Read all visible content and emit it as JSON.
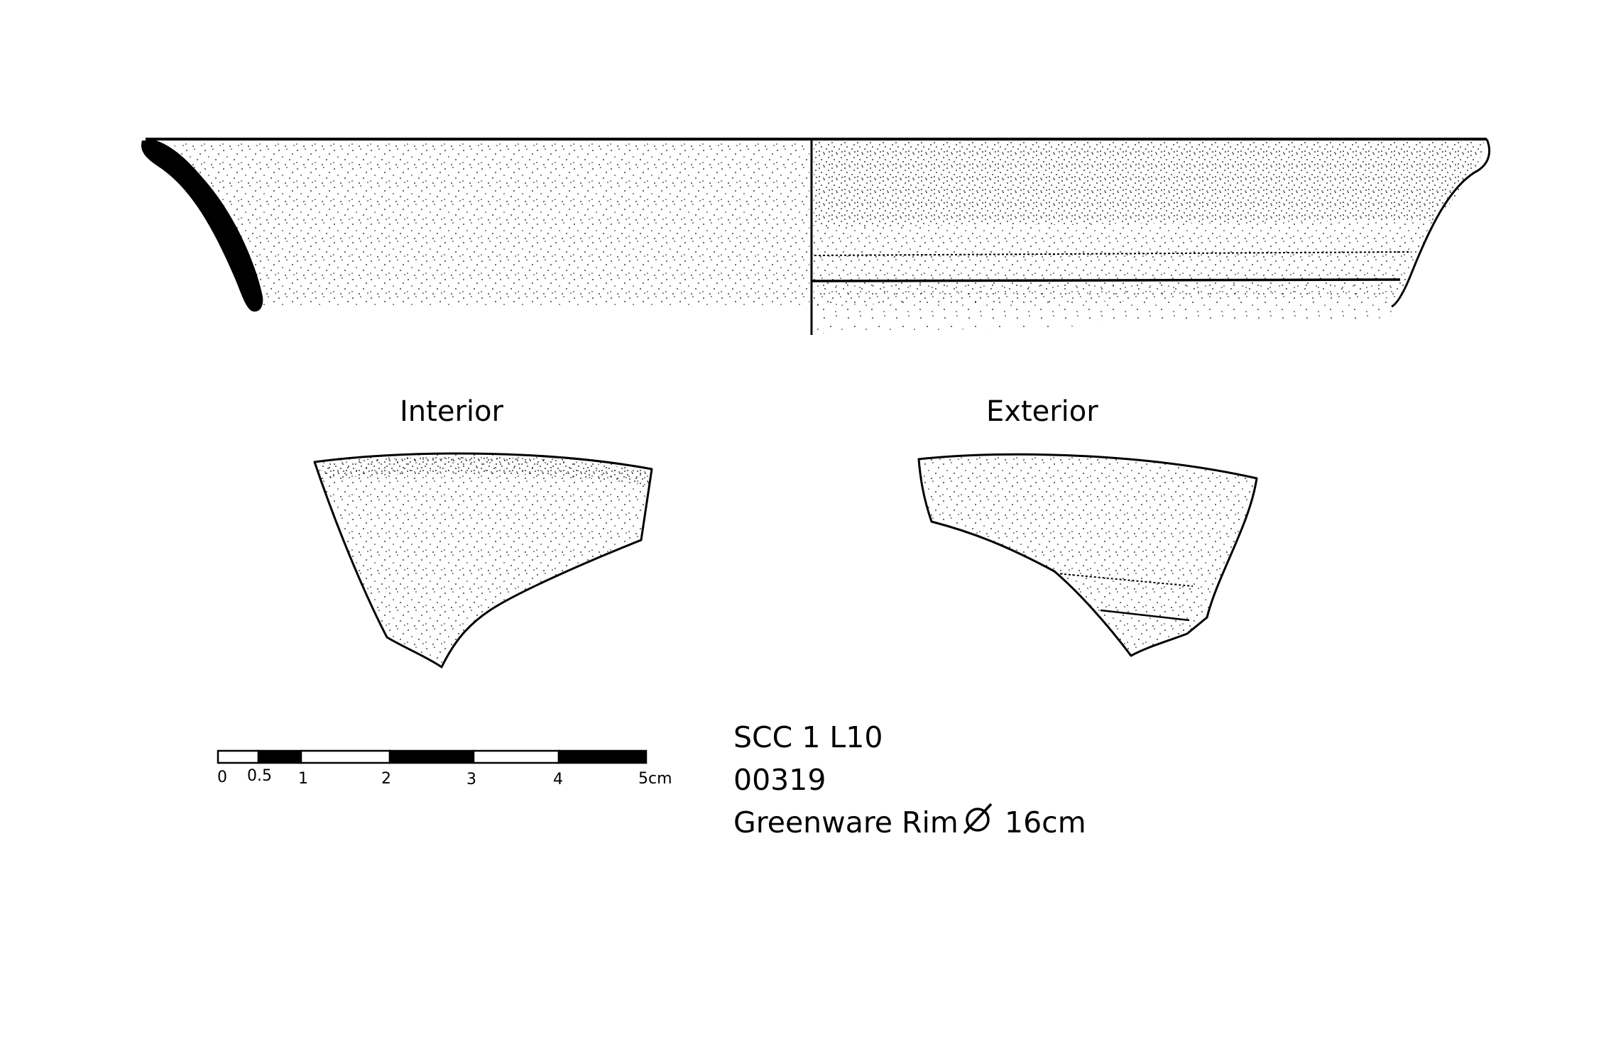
{
  "views": {
    "interior_label": "Interior",
    "exterior_label": "Exterior"
  },
  "scale_bar": {
    "ticks": [
      "0",
      "0.5",
      "1",
      "2",
      "3",
      "4",
      "5cm"
    ],
    "max_cm": 5
  },
  "sherd_info": {
    "site_context": "SCC 1 L10",
    "catalog_number": "00319",
    "ware_and_form": "Greenware Rim",
    "diameter_symbol": "diameter-icon",
    "diameter": "16cm"
  },
  "colors": {
    "ink": "#000000",
    "paper": "#ffffff"
  }
}
